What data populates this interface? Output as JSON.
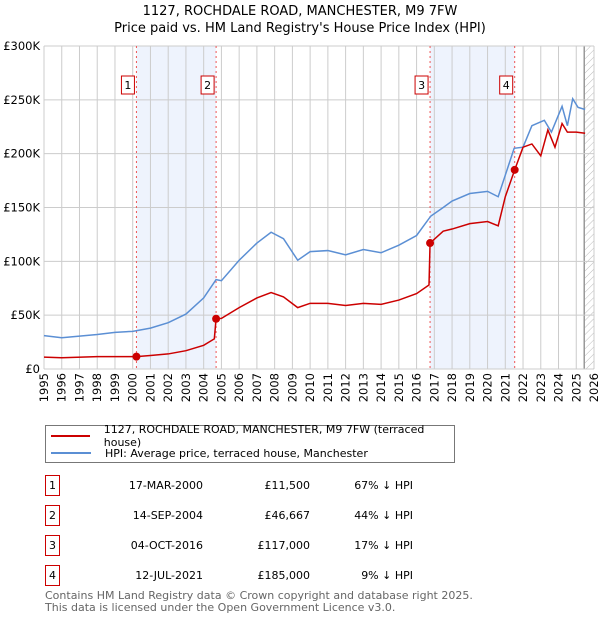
{
  "title": "1127, ROCHDALE ROAD, MANCHESTER, M9 7FW",
  "subtitle": "Price paid vs. HM Land Registry's House Price Index (HPI)",
  "colors": {
    "property": "#cc0000",
    "hpi": "#5b8fd4",
    "shade": "#eef3fd"
  },
  "chart_data": {
    "type": "line",
    "title": "1127, ROCHDALE ROAD, MANCHESTER, M9 7FW — Price paid vs. HM Land Registry's House Price Index (HPI)",
    "xlim": [
      1995,
      2026
    ],
    "ylim": [
      0,
      300000
    ],
    "xticks": [
      "1995",
      "1996",
      "1997",
      "1998",
      "1999",
      "2000",
      "2001",
      "2002",
      "2003",
      "2004",
      "2005",
      "2006",
      "2007",
      "2008",
      "2009",
      "2010",
      "2011",
      "2012",
      "2013",
      "2014",
      "2015",
      "2016",
      "2017",
      "2018",
      "2019",
      "2020",
      "2021",
      "2022",
      "2023",
      "2024",
      "2025",
      "2026"
    ],
    "yticks": [
      {
        "v": 0,
        "label": "£0"
      },
      {
        "v": 50000,
        "label": "£50K"
      },
      {
        "v": 100000,
        "label": "£100K"
      },
      {
        "v": 150000,
        "label": "£150K"
      },
      {
        "v": 200000,
        "label": "£200K"
      },
      {
        "v": 250000,
        "label": "£250K"
      },
      {
        "v": 300000,
        "label": "£300K"
      }
    ],
    "grid": true,
    "series": [
      {
        "name": "1127, ROCHDALE ROAD, MANCHESTER, M9 7FW (terraced house)",
        "color": "#cc0000",
        "points": [
          [
            1995,
            11000
          ],
          [
            1996,
            10500
          ],
          [
            1998,
            11500
          ],
          [
            2000.21,
            11500
          ],
          [
            2001,
            12500
          ],
          [
            2002,
            14000
          ],
          [
            2003,
            17000
          ],
          [
            2004,
            22000
          ],
          [
            2004.6,
            28000
          ],
          [
            2004.7,
            46667
          ],
          [
            2005,
            47000
          ],
          [
            2006,
            57000
          ],
          [
            2007,
            66000
          ],
          [
            2007.8,
            71000
          ],
          [
            2008.5,
            67000
          ],
          [
            2009.3,
            57000
          ],
          [
            2010,
            61000
          ],
          [
            2011,
            61000
          ],
          [
            2012,
            59000
          ],
          [
            2013,
            61000
          ],
          [
            2014,
            60000
          ],
          [
            2015,
            64000
          ],
          [
            2016,
            70000
          ],
          [
            2016.7,
            78000
          ],
          [
            2016.76,
            117000
          ],
          [
            2017.5,
            128000
          ],
          [
            2018,
            130000
          ],
          [
            2019,
            135000
          ],
          [
            2020,
            137000
          ],
          [
            2020.6,
            133000
          ],
          [
            2021,
            160000
          ],
          [
            2021.53,
            185000
          ],
          [
            2022,
            206000
          ],
          [
            2022.5,
            209000
          ],
          [
            2023,
            198000
          ],
          [
            2023.4,
            222000
          ],
          [
            2023.8,
            206000
          ],
          [
            2024.2,
            228000
          ],
          [
            2024.5,
            220000
          ],
          [
            2025,
            220000
          ],
          [
            2025.5,
            219000
          ]
        ]
      },
      {
        "name": "HPI: Average price, terraced house, Manchester",
        "color": "#5b8fd4",
        "points": [
          [
            1995,
            31000
          ],
          [
            1996,
            29000
          ],
          [
            1997,
            30500
          ],
          [
            1998,
            32000
          ],
          [
            1999,
            34000
          ],
          [
            2000,
            35000
          ],
          [
            2001,
            38000
          ],
          [
            2002,
            43000
          ],
          [
            2003,
            51000
          ],
          [
            2004,
            66000
          ],
          [
            2004.7,
            83000
          ],
          [
            2005,
            82000
          ],
          [
            2006,
            101000
          ],
          [
            2007,
            117000
          ],
          [
            2007.8,
            127000
          ],
          [
            2008.5,
            121000
          ],
          [
            2009.3,
            101000
          ],
          [
            2010,
            109000
          ],
          [
            2011,
            110000
          ],
          [
            2012,
            106000
          ],
          [
            2013,
            111000
          ],
          [
            2014,
            108000
          ],
          [
            2015,
            115000
          ],
          [
            2016,
            124000
          ],
          [
            2016.8,
            142000
          ],
          [
            2017.5,
            150000
          ],
          [
            2018,
            156000
          ],
          [
            2019,
            163000
          ],
          [
            2020,
            165000
          ],
          [
            2020.6,
            160000
          ],
          [
            2021,
            180000
          ],
          [
            2021.5,
            205000
          ],
          [
            2022,
            206000
          ],
          [
            2022.5,
            226000
          ],
          [
            2023.2,
            231000
          ],
          [
            2023.6,
            220000
          ],
          [
            2024.2,
            244000
          ],
          [
            2024.5,
            226000
          ],
          [
            2024.8,
            251000
          ],
          [
            2025.1,
            243000
          ],
          [
            2025.5,
            241000
          ]
        ]
      }
    ],
    "sales": [
      {
        "n": "1",
        "x": 2000.21,
        "y": 11500
      },
      {
        "n": "2",
        "x": 2004.7,
        "y": 46667
      },
      {
        "n": "3",
        "x": 2016.76,
        "y": 117000
      },
      {
        "n": "4",
        "x": 2021.53,
        "y": 185000
      }
    ],
    "shaded_ranges": [
      [
        2000.21,
        2004.7
      ],
      [
        2016.76,
        2021.53
      ]
    ],
    "forecast_from": 2025.45,
    "legend_position": "below"
  },
  "legend": {
    "property": "1127, ROCHDALE ROAD, MANCHESTER, M9 7FW (terraced house)",
    "hpi": "HPI: Average price, terraced house, Manchester"
  },
  "transactions": [
    {
      "n": "1",
      "date": "17-MAR-2000",
      "price": "£11,500",
      "hpi": "67% ↓ HPI"
    },
    {
      "n": "2",
      "date": "14-SEP-2004",
      "price": "£46,667",
      "hpi": "44% ↓ HPI"
    },
    {
      "n": "3",
      "date": "04-OCT-2016",
      "price": "£117,000",
      "hpi": "17% ↓ HPI"
    },
    {
      "n": "4",
      "date": "12-JUL-2021",
      "price": "£185,000",
      "hpi": "9% ↓ HPI"
    }
  ],
  "footer": {
    "line1": "Contains HM Land Registry data © Crown copyright and database right 2025.",
    "line2": "This data is licensed under the Open Government Licence v3.0."
  }
}
